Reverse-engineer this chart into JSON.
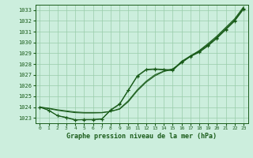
{
  "bg_color": "#cceedd",
  "grid_color": "#99ccaa",
  "line_color": "#1a5c1a",
  "marker_color": "#1a5c1a",
  "text_color": "#1a5c1a",
  "xlabel": "Graphe pression niveau de la mer (hPa)",
  "ylim": [
    1022.5,
    1033.5
  ],
  "xlim": [
    -0.5,
    23.5
  ],
  "yticks": [
    1023,
    1024,
    1025,
    1026,
    1027,
    1028,
    1029,
    1030,
    1031,
    1032,
    1033
  ],
  "xticks": [
    0,
    1,
    2,
    3,
    4,
    5,
    6,
    7,
    8,
    9,
    10,
    11,
    12,
    13,
    14,
    15,
    16,
    17,
    18,
    19,
    20,
    21,
    22,
    23
  ],
  "line_straight1": [
    1024.0,
    1023.9,
    1023.75,
    1023.65,
    1023.55,
    1023.5,
    1023.5,
    1023.5,
    1023.6,
    1023.8,
    1024.5,
    1025.5,
    1026.3,
    1026.9,
    1027.3,
    1027.5,
    1028.1,
    1028.7,
    1029.2,
    1029.8,
    1030.5,
    1031.3,
    1032.1,
    1033.2
  ],
  "line_straight2": [
    1024.0,
    1023.85,
    1023.7,
    1023.58,
    1023.48,
    1023.45,
    1023.45,
    1023.47,
    1023.6,
    1023.85,
    1024.6,
    1025.6,
    1026.4,
    1027.0,
    1027.35,
    1027.55,
    1028.15,
    1028.75,
    1029.25,
    1029.9,
    1030.6,
    1031.4,
    1032.2,
    1033.3
  ],
  "line_curve_x": [
    0,
    1,
    2,
    3,
    4,
    5,
    6,
    7,
    8,
    9,
    10,
    11,
    12,
    13,
    14,
    15,
    16,
    17,
    18,
    19,
    20,
    21,
    22,
    23
  ],
  "line_curve": [
    1024.0,
    1023.7,
    1023.2,
    1023.0,
    1022.8,
    1022.85,
    1022.85,
    1022.9,
    1023.75,
    1024.3,
    1025.6,
    1026.9,
    1027.5,
    1027.55,
    1027.5,
    1027.45,
    1028.25,
    1028.75,
    1029.15,
    1029.75,
    1030.45,
    1031.25,
    1032.05,
    1033.15
  ],
  "line_main_x": [
    0,
    1,
    2,
    3,
    4,
    5,
    6,
    7,
    8,
    9,
    10,
    11,
    12,
    13,
    14,
    15,
    16,
    17,
    18,
    19,
    20,
    21,
    22,
    23
  ],
  "line_main": [
    1024.0,
    1023.7,
    1023.2,
    1023.05,
    1022.82,
    1022.82,
    1022.82,
    1022.88,
    1023.7,
    1024.25,
    1025.55,
    1026.85,
    1027.45,
    1027.5,
    1027.45,
    1027.38,
    1028.18,
    1028.68,
    1029.08,
    1029.68,
    1030.38,
    1031.18,
    1031.98,
    1033.08
  ]
}
